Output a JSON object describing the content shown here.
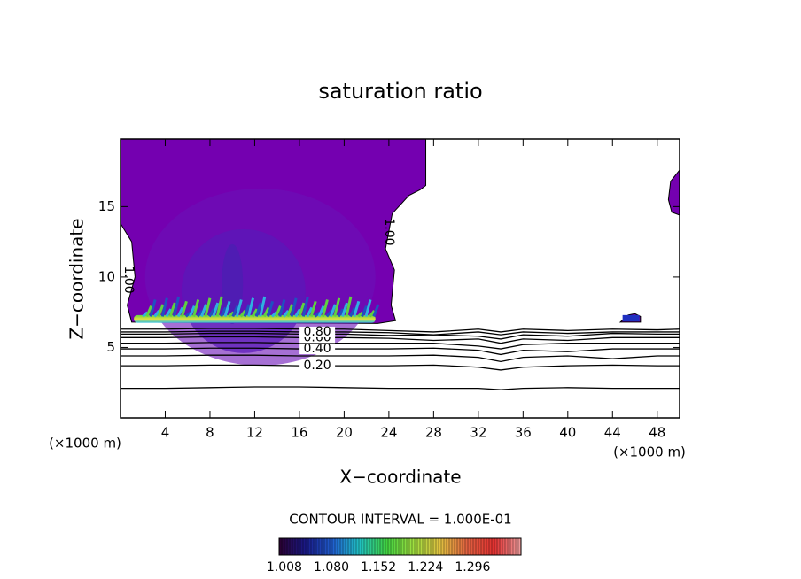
{
  "chart_data": {
    "type": "contour",
    "title": "saturation ratio",
    "xlabel": "X−coordinate",
    "ylabel": "Z−coordinate",
    "x_unit_left": "(×1000 m)",
    "x_unit_right": "(×1000 m)",
    "contour_interval_text": "CONTOUR INTERVAL = 1.000E-01",
    "xlim": [
      0,
      50
    ],
    "ylim": [
      0,
      19.8
    ],
    "xticks": [
      4,
      8,
      12,
      16,
      20,
      24,
      28,
      32,
      36,
      40,
      44,
      48
    ],
    "yticks": [
      5,
      10,
      15
    ],
    "contour_x": [
      0,
      4,
      8,
      12,
      16,
      20,
      24,
      28,
      32,
      34,
      36,
      40,
      44,
      48,
      50
    ],
    "contours": [
      {
        "level": 0.1,
        "z": [
          2.1,
          2.1,
          2.15,
          2.2,
          2.2,
          2.15,
          2.1,
          2.1,
          2.1,
          2.0,
          2.1,
          2.15,
          2.1,
          2.1,
          2.1
        ]
      },
      {
        "level": 0.2,
        "label": "0.20",
        "z": [
          3.7,
          3.7,
          3.75,
          3.75,
          3.7,
          3.7,
          3.7,
          3.75,
          3.6,
          3.4,
          3.6,
          3.7,
          3.75,
          3.7,
          3.7
        ]
      },
      {
        "level": 0.3,
        "z": [
          4.4,
          4.4,
          4.45,
          4.45,
          4.4,
          4.4,
          4.4,
          4.45,
          4.3,
          4.0,
          4.3,
          4.4,
          4.2,
          4.4,
          4.4
        ]
      },
      {
        "level": 0.4,
        "label": "0.40",
        "z": [
          4.9,
          4.9,
          4.95,
          4.95,
          4.9,
          4.9,
          4.9,
          4.95,
          4.8,
          4.5,
          4.8,
          4.7,
          4.9,
          4.9,
          4.9
        ]
      },
      {
        "level": 0.5,
        "z": [
          5.3,
          5.3,
          5.35,
          5.35,
          5.3,
          5.3,
          5.3,
          5.3,
          5.1,
          4.9,
          5.2,
          5.3,
          5.3,
          5.3,
          5.3
        ]
      },
      {
        "level": 0.6,
        "label": "0.60",
        "z": [
          5.7,
          5.7,
          5.75,
          5.75,
          5.7,
          5.7,
          5.65,
          5.5,
          5.6,
          5.3,
          5.6,
          5.5,
          5.7,
          5.7,
          5.7
        ]
      },
      {
        "level": 0.7,
        "z": [
          5.95,
          5.95,
          6.0,
          6.0,
          5.95,
          5.95,
          5.85,
          5.9,
          5.8,
          5.6,
          5.9,
          5.8,
          6.0,
          5.95,
          5.95
        ]
      },
      {
        "level": 0.8,
        "label": "0.80",
        "z": [
          6.1,
          6.1,
          6.15,
          6.15,
          6.1,
          6.1,
          6.05,
          5.9,
          6.1,
          5.9,
          6.1,
          6.0,
          6.1,
          6.1,
          6.1
        ]
      },
      {
        "level": 0.9,
        "z": [
          6.3,
          6.3,
          6.35,
          6.35,
          6.3,
          6.3,
          6.2,
          6.1,
          6.3,
          6.1,
          6.3,
          6.2,
          6.3,
          6.25,
          6.3
        ]
      }
    ],
    "region_level": {
      "value": 1,
      "label": "1.00"
    },
    "region_color": "#7400b0",
    "regions": [
      {
        "x": [
          0,
          27.3,
          27.3,
          26.8,
          25.8,
          24.3,
          23.7,
          24.5,
          24.2,
          24.6,
          23.0,
          1.0,
          0.6,
          1.3,
          1.0,
          0
        ],
        "z": [
          19.8,
          19.8,
          16.5,
          16.2,
          15.8,
          14.5,
          12.0,
          10.5,
          8.0,
          6.9,
          6.7,
          6.8,
          8.0,
          10.0,
          12.5,
          13.8
        ]
      },
      {
        "x": [
          50,
          49.2,
          49.0,
          49.3,
          50
        ],
        "z": [
          17.6,
          16.8,
          15.5,
          14.6,
          14.4
        ]
      },
      {
        "x": [
          44.7,
          45.4,
          46.0,
          46.5,
          46.5,
          44.7
        ],
        "z": [
          6.8,
          7.3,
          7.4,
          7.2,
          6.8,
          6.8
        ]
      }
    ],
    "colorbar_lim": [
      1.0,
      1.37
    ],
    "colorbar_ticks": [
      1.008,
      {
        "value": 1.08,
        "label": "1.080"
      },
      1.152,
      1.224,
      1.296
    ],
    "colormap": [
      "#2a0030",
      "#1a1a8a",
      "#2060d0",
      "#20c0c0",
      "#40d040",
      "#a0e040",
      "#e0c040",
      "#e06040",
      "#e03030",
      "#f0a0a0"
    ]
  }
}
